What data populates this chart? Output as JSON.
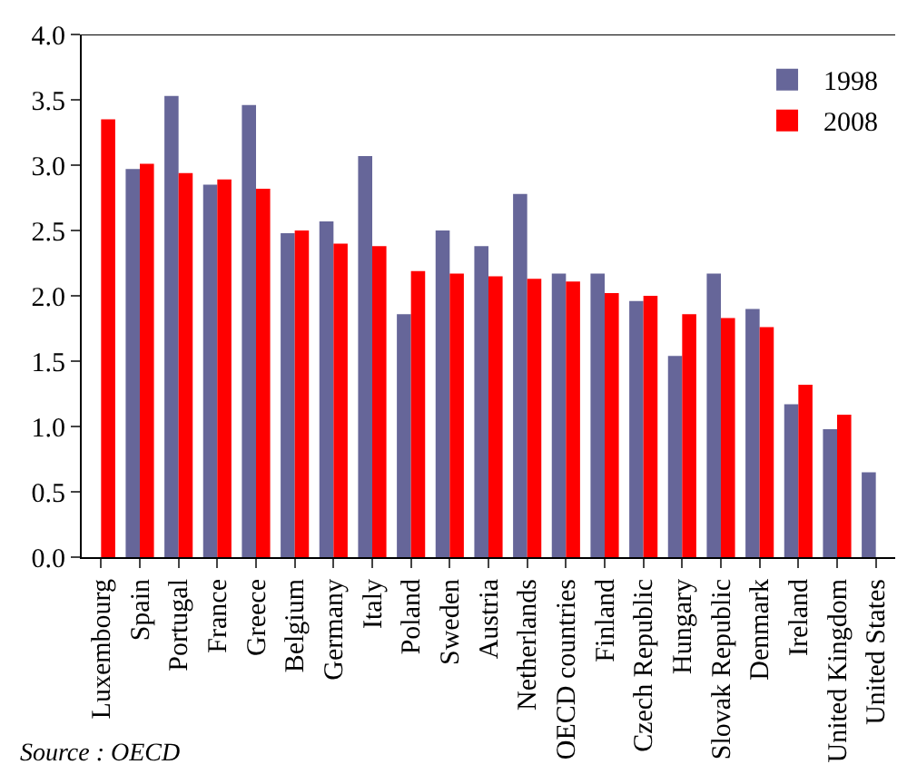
{
  "chart_data": {
    "type": "bar",
    "categories": [
      "Luxembourg",
      "Spain",
      "Portugal",
      "France",
      "Greece",
      "Belgium",
      "Germany",
      "Italy",
      "Poland",
      "Sweden",
      "Austria",
      "Netherlands",
      "OECD countries",
      "Finland",
      "Czech Republic",
      "Hungary",
      "Slovak Republic",
      "Denmark",
      "Ireland",
      "United Kingdom",
      "United States"
    ],
    "series": [
      {
        "name": "1998",
        "color": "#666699",
        "values": [
          null,
          2.97,
          3.53,
          2.85,
          3.46,
          2.48,
          2.57,
          3.07,
          1.86,
          2.5,
          2.38,
          2.78,
          2.17,
          2.17,
          1.96,
          1.54,
          2.17,
          1.9,
          1.17,
          0.98,
          0.65
        ]
      },
      {
        "name": "2008",
        "color": "#ff0000",
        "values": [
          3.35,
          3.01,
          2.94,
          2.89,
          2.82,
          2.5,
          2.4,
          2.38,
          2.19,
          2.17,
          2.15,
          2.13,
          2.11,
          2.02,
          2.0,
          1.86,
          1.83,
          1.76,
          1.32,
          1.09,
          null
        ]
      }
    ],
    "ylim": [
      0,
      4.0
    ],
    "yticks": [
      {
        "value": 0,
        "label": "0.0"
      },
      0.5,
      {
        "value": 1,
        "label": "1.0"
      },
      1.5,
      {
        "value": 2,
        "label": "2.0"
      },
      2.5,
      {
        "value": 3,
        "label": "3.0"
      },
      3.5,
      {
        "value": 4,
        "label": "4.0"
      }
    ],
    "legend": "top right",
    "annotations": [
      "Source : OECD"
    ]
  }
}
